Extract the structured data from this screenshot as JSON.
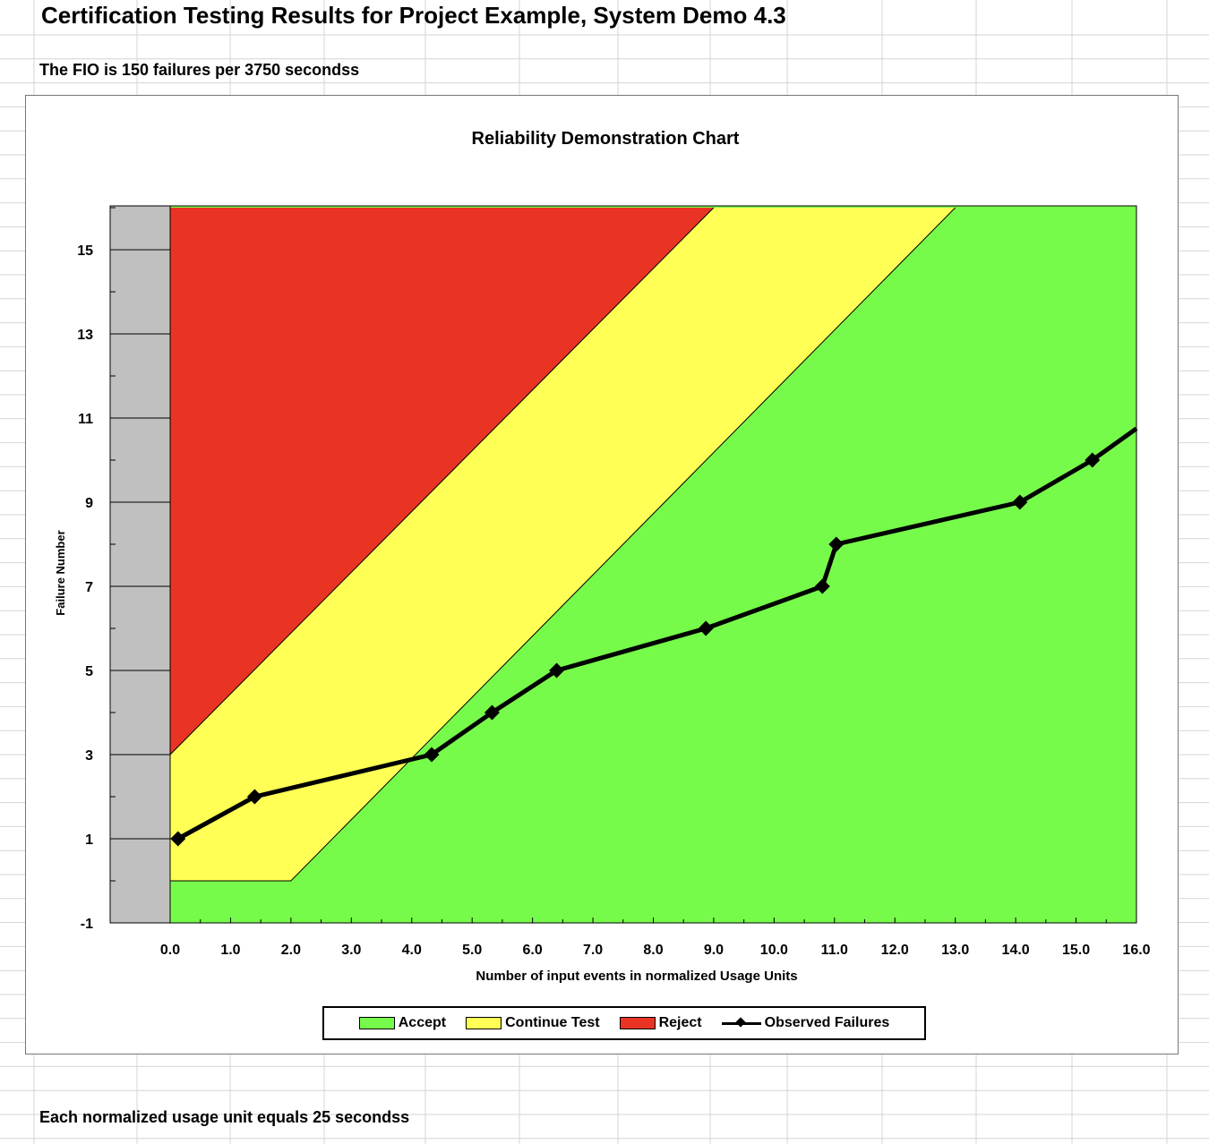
{
  "sheet": {
    "title": "Certification Testing Results for Project Example, System Demo 4.3",
    "fio_note": "The FIO is 150 failures per 3750 secondss",
    "footer_note": "Each normalized usage unit equals 25 secondss"
  },
  "chart_data": {
    "type": "area",
    "title": "Reliability Demonstration Chart",
    "xlabel": "Number of input events in normalized Usage Units",
    "ylabel": "Failure Number",
    "xlim": [
      -1,
      16
    ],
    "ylim": [
      -1,
      16
    ],
    "x_ticks": [
      "0.0",
      "1.0",
      "2.0",
      "3.0",
      "4.0",
      "5.0",
      "6.0",
      "7.0",
      "8.0",
      "9.0",
      "10.0",
      "11.0",
      "12.0",
      "13.0",
      "14.0",
      "15.0",
      "16.0"
    ],
    "y_ticks": [
      "-1",
      "1",
      "3",
      "5",
      "7",
      "9",
      "11",
      "13",
      "15"
    ],
    "legend_position": "bottom",
    "colors": {
      "accept": "#77FB4B",
      "continue": "#FFFF55",
      "reject": "#E93424",
      "out_of_range": "#C0C0C0"
    },
    "series": [
      {
        "name": "Accept",
        "color": "#77FB4B"
      },
      {
        "name": "Continue Test",
        "color": "#FFFF55"
      },
      {
        "name": "Reject",
        "color": "#E93424"
      },
      {
        "name": "Observed Failures",
        "color": "#000000",
        "x": [
          0.13,
          1.4,
          4.33,
          5.33,
          6.4,
          8.87,
          10.8,
          11.03,
          14.07,
          15.27,
          16.0
        ],
        "y": [
          1,
          2,
          3,
          4,
          5,
          6,
          7,
          8,
          9,
          10,
          10.75
        ]
      }
    ],
    "boundaries": {
      "reject_line": {
        "x": [
          0,
          9
        ],
        "y": [
          3,
          16
        ]
      },
      "accept_line": {
        "x": [
          2,
          13
        ],
        "y": [
          0,
          16
        ]
      }
    }
  }
}
